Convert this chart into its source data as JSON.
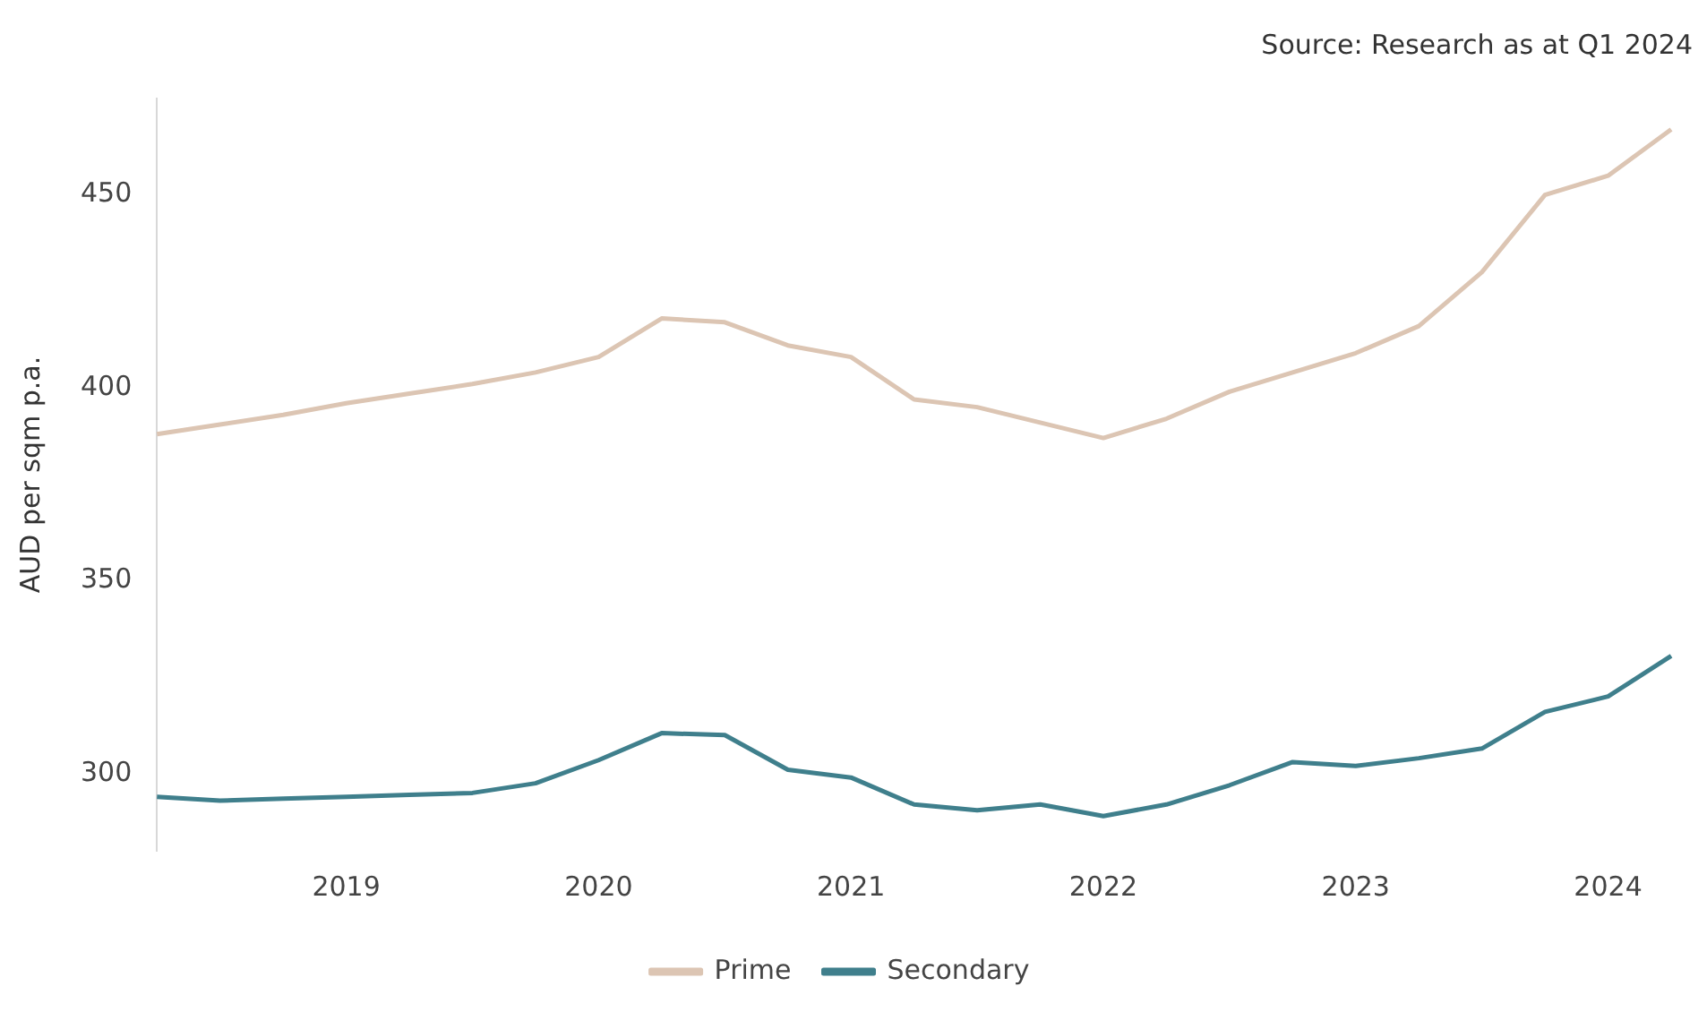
{
  "chart_data": {
    "type": "line",
    "annotations": [
      "Source: Research as at Q1 2024"
    ],
    "ylabel": "AUD per sqm p.a.",
    "categories": [
      null,
      null,
      null,
      "2019",
      null,
      null,
      null,
      "2020",
      null,
      null,
      null,
      "2021",
      null,
      null,
      null,
      "2022",
      null,
      null,
      null,
      "2023",
      null,
      null,
      null,
      "2024",
      null
    ],
    "series": [
      {
        "name": "Prime",
        "color": "#dcc5b3",
        "values": [
          388,
          390.5,
          393,
          396,
          398.5,
          401,
          404,
          408,
          418,
          417,
          411,
          408,
          397,
          395,
          391,
          387,
          392,
          399,
          404,
          409,
          416,
          430,
          450,
          455,
          467
        ]
      },
      {
        "name": "Secondary",
        "color": "#3f7f8c",
        "values": [
          294,
          293,
          293.5,
          294,
          294.5,
          295,
          297.5,
          303.5,
          310.5,
          310,
          301,
          299,
          292,
          290.5,
          292,
          289,
          292,
          297,
          303,
          302,
          304,
          306.5,
          316,
          320,
          330.5
        ]
      }
    ],
    "ylim": [
      280,
      475
    ],
    "yticks": [
      300,
      350,
      400,
      450
    ],
    "grid": false,
    "legend": "bottom",
    "marker": "none",
    "line_style": "solid"
  }
}
